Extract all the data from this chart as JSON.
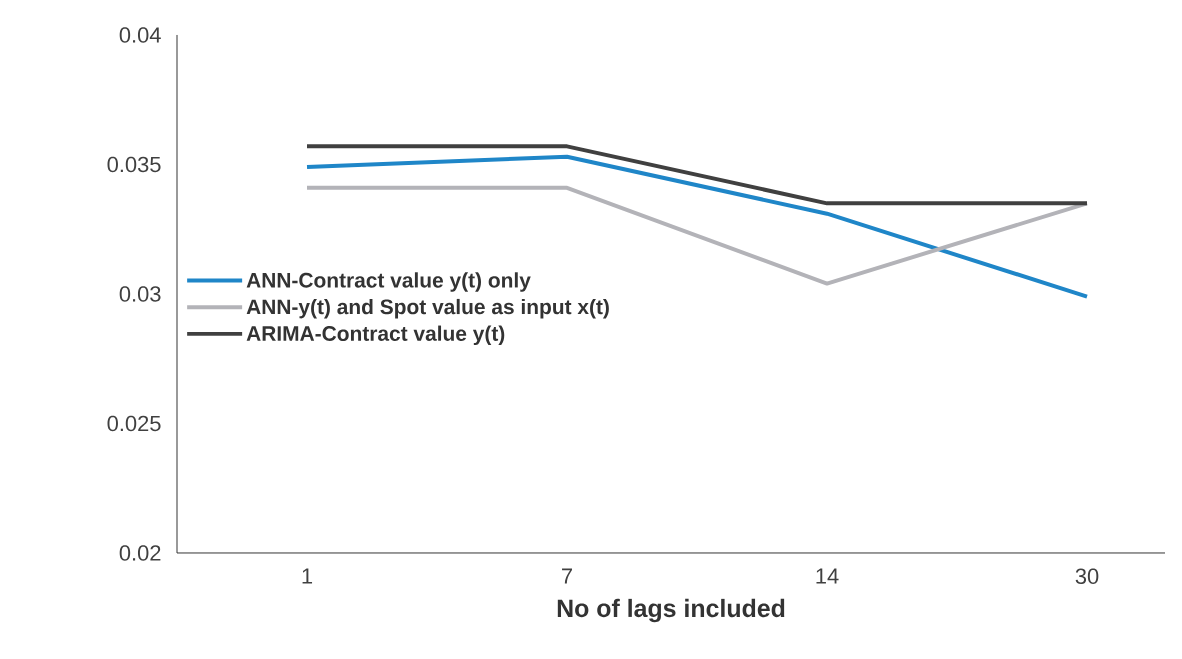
{
  "chart_data": {
    "type": "line",
    "xlabel": "No of lags included",
    "categories": [
      "1",
      "7",
      "14",
      "30"
    ],
    "series": [
      {
        "name": "ANN-Contract value y(t) only",
        "color": "#1f86c8",
        "values": [
          0.0349,
          0.0353,
          0.0331,
          0.0299
        ]
      },
      {
        "name": "ANN-y(t) and Spot value as input x(t)",
        "color": "#b3b3b8",
        "values": [
          0.0341,
          0.0341,
          0.0304,
          0.0335
        ]
      },
      {
        "name": "ARIMA-Contract value y(t)",
        "color": "#404040",
        "values": [
          0.0357,
          0.0357,
          0.0335,
          0.0335
        ]
      }
    ],
    "ylim": [
      0.02,
      0.04
    ],
    "yticks": [
      0.02,
      0.025,
      0.03,
      0.035,
      0.04
    ],
    "grid": false,
    "legend": "left",
    "marker": "none",
    "line_style": "solid"
  }
}
